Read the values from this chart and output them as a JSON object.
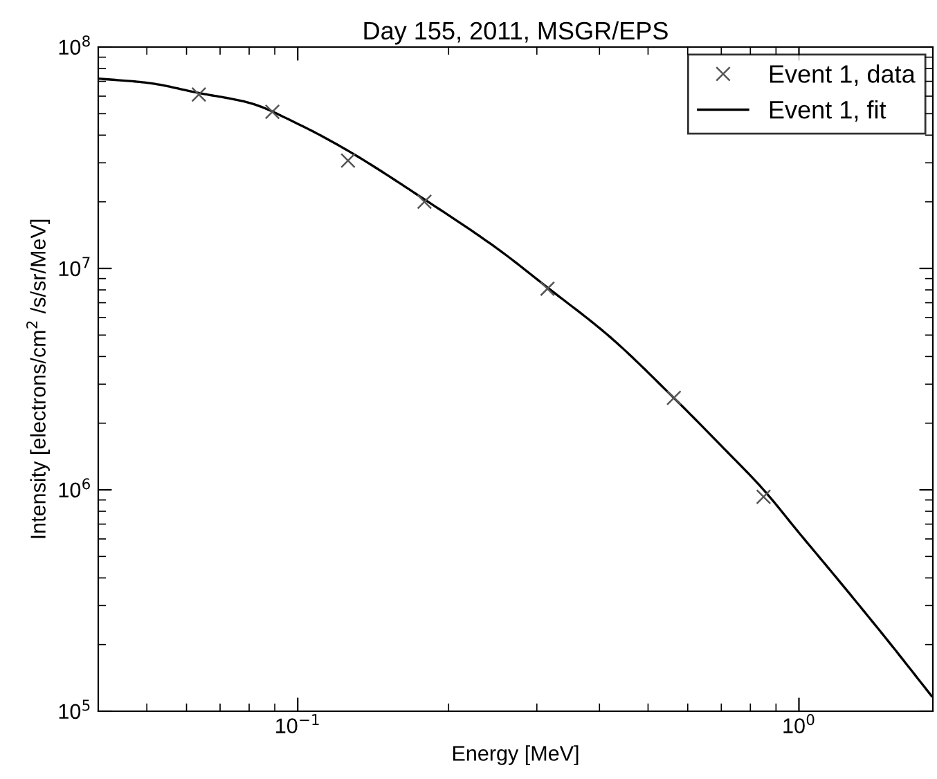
{
  "chart_data": {
    "type": "line",
    "title": "Day 155, 2011, MSGR/EPS",
    "xlabel": "Energy [MeV]",
    "ylabel": "Intensity [electrons/cm$^{2}$ /s/sr/MeV]",
    "log": "xy",
    "xlim": [
      0.04,
      1.85
    ],
    "ylim": [
      100000,
      100000000
    ],
    "xticks": [
      {
        "value": 0.1,
        "label": "10$^{−1}$"
      },
      {
        "value": 1,
        "label": "10$^{0}$"
      }
    ],
    "yticks": [
      {
        "value": 100000,
        "label": "10$^{5}$"
      },
      {
        "value": 1000000,
        "label": "10$^{6}$"
      },
      {
        "value": 10000000,
        "label": "10$^{7}$"
      },
      {
        "value": 100000000,
        "label": "10$^{8}$"
      }
    ],
    "legend": "top right",
    "grid": false,
    "series": [
      {
        "name": "Event 1, data",
        "type": "scatter",
        "marker": "cross",
        "color": "#555555",
        "x": [
          0.0635,
          0.089,
          0.126,
          0.179,
          0.315,
          0.563,
          0.85
        ],
        "values": [
          61000000,
          51000000,
          30700000,
          20000000,
          8100000,
          2600000,
          930000
        ]
      },
      {
        "name": "Event 1, fit",
        "type": "line",
        "marker": "none",
        "line_style": "solid",
        "color": "#000000",
        "x": [
          0.04,
          0.05,
          0.0635,
          0.08,
          0.1,
          0.126,
          0.179,
          0.25,
          0.315,
          0.42,
          0.563,
          0.7,
          0.85,
          1.0,
          1.2,
          1.5,
          1.84
        ],
        "values": [
          72000000,
          69000000,
          62000000,
          56000000,
          45000000,
          34000000,
          20500000,
          12300000,
          8200000,
          4900000,
          2600000,
          1580000,
          1000000,
          640000,
          390000,
          210000,
          117000
        ]
      }
    ]
  }
}
